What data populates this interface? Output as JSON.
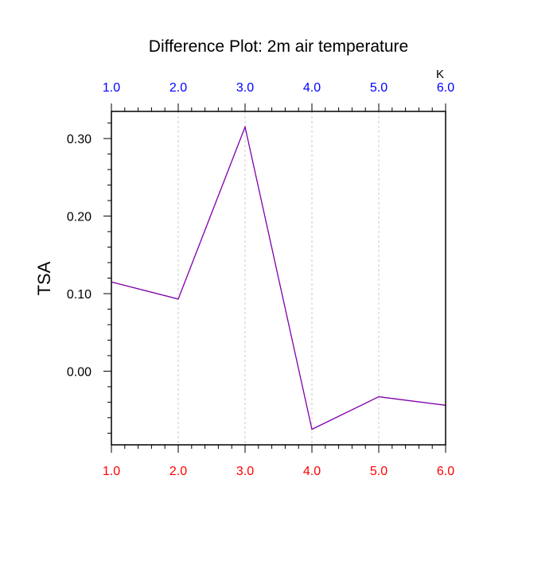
{
  "chart_data": {
    "type": "line",
    "title": "Difference Plot: 2m air temperature",
    "ylabel": "TSA",
    "units_label": "K",
    "x": [
      1.0,
      2.0,
      3.0,
      4.0,
      5.0,
      6.0
    ],
    "x_tick_labels": [
      "1.0",
      "2.0",
      "3.0",
      "4.0",
      "5.0",
      "6.0"
    ],
    "y_tick_values": [
      0.0,
      0.1,
      0.2,
      0.3
    ],
    "y_tick_labels": [
      "0.00",
      "0.10",
      "0.20",
      "0.30"
    ],
    "xlim": [
      1.0,
      6.0
    ],
    "ylim": [
      -0.095,
      0.335
    ],
    "series": [
      {
        "values": [
          0.115,
          0.093,
          0.315,
          -0.075,
          -0.033,
          -0.044
        ],
        "color": "#6a00c8",
        "dash_color": "#ff0000"
      }
    ],
    "grid": "vertical dotted at x ticks",
    "colors": {
      "bottom_ticks": "#ff0000",
      "top_ticks": "#0000ff",
      "axis": "#000000",
      "grid": "#c8c8c8"
    }
  }
}
